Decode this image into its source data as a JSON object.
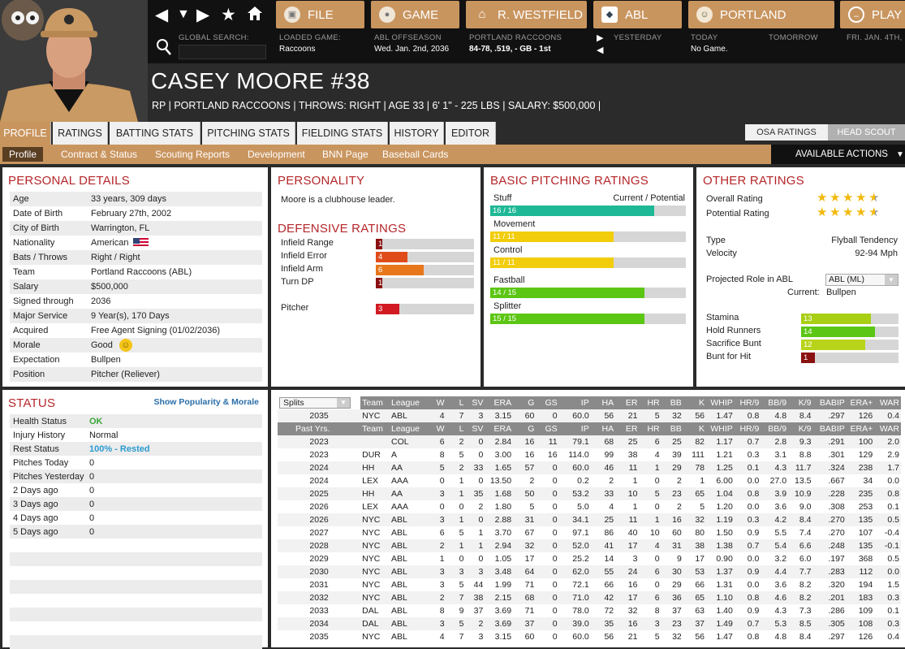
{
  "menu": {
    "file": "FILE",
    "game": "GAME",
    "manager": "R. WESTFIELD",
    "league": "ABL",
    "team": "PORTLAND",
    "play": "PLAY"
  },
  "info_bar": {
    "search_label": "GLOBAL SEARCH:",
    "loaded_label": "LOADED GAME:",
    "loaded_value": "Raccoons",
    "season_label": "ABL OFFSEASON",
    "season_value": "Wed. Jan. 2nd, 2036",
    "team_label": "PORTLAND RACCOONS",
    "team_value": "84-78, .519, - GB - 1st",
    "yesterday": "YESTERDAY",
    "today_label": "TODAY",
    "today_value": "No Game.",
    "tomorrow": "TOMORROW",
    "next_day": "FRI. JAN. 4TH,"
  },
  "player": {
    "name": "CASEY MOORE  #38",
    "subtitle": "RP | PORTLAND RACCOONS  |  THROWS: RIGHT  |  AGE 33  |  6' 1\" - 225 LBS  |  SALARY: $500,000  |"
  },
  "tabs": [
    "PROFILE",
    "RATINGS",
    "BATTING STATS",
    "PITCHING STATS",
    "FIELDING STATS",
    "HISTORY",
    "EDITOR"
  ],
  "scout_toggle": {
    "osa": "OSA RATINGS",
    "head": "HEAD SCOUT"
  },
  "subtabs": [
    "Profile",
    "Contract & Status",
    "Scouting Reports",
    "Development",
    "BNN Page",
    "Baseball Cards"
  ],
  "actions_label": "AVAILABLE ACTIONS",
  "personal": {
    "title": "PERSONAL DETAILS",
    "rows": [
      {
        "k": "Age",
        "v": "33 years, 309 days"
      },
      {
        "k": "Date of Birth",
        "v": "February 27th, 2002"
      },
      {
        "k": "City of Birth",
        "v": "Warrington, FL"
      },
      {
        "k": "Nationality",
        "v": "American"
      },
      {
        "k": "Bats / Throws",
        "v": "Right / Right"
      },
      {
        "k": "Team",
        "v": "Portland Raccoons (ABL)"
      },
      {
        "k": "Salary",
        "v": "$500,000"
      },
      {
        "k": "Signed through",
        "v": "2036"
      },
      {
        "k": "Major Service",
        "v": "9 Year(s), 170 Days"
      },
      {
        "k": "Acquired",
        "v": "Free Agent Signing (01/02/2036)"
      },
      {
        "k": "Morale",
        "v": "Good"
      },
      {
        "k": "Expectation",
        "v": "Bullpen"
      },
      {
        "k": "Position",
        "v": "Pitcher (Reliever)"
      }
    ]
  },
  "personality": {
    "title": "PERSONALITY",
    "text": "Moore is a clubhouse leader."
  },
  "defense": {
    "title": "DEFENSIVE RATINGS",
    "rows": [
      {
        "label": "Infield Range",
        "value": "1",
        "fraction": 0.07,
        "color": "#8b1010"
      },
      {
        "label": "Infield Error",
        "value": "4",
        "fraction": 0.32,
        "color": "#e04b1a"
      },
      {
        "label": "Infield Arm",
        "value": "6",
        "fraction": 0.49,
        "color": "#e8761a"
      },
      {
        "label": "Turn DP",
        "value": "1",
        "fraction": 0.07,
        "color": "#8b1010"
      }
    ],
    "pitcher": {
      "label": "Pitcher",
      "value": "3",
      "fraction": 0.24,
      "color": "#d21a22"
    }
  },
  "pitching": {
    "title": "BASIC PITCHING RATINGS",
    "header": "Current / Potential",
    "rows": [
      {
        "label": "Stuff",
        "value": "16 / 16",
        "fraction": 0.84,
        "color": "#1fb896"
      },
      {
        "label": "Movement",
        "value": "11 / 11",
        "fraction": 0.63,
        "color": "#f2cd0c"
      },
      {
        "label": "Control",
        "value": "11 / 11",
        "fraction": 0.63,
        "color": "#f2cd0c"
      },
      {
        "label": "Fastball",
        "value": "14 / 15",
        "fraction": 0.79,
        "color": "#5cc614"
      },
      {
        "label": "Splitter",
        "value": "15 / 15",
        "fraction": 0.79,
        "color": "#5cc614"
      }
    ]
  },
  "other": {
    "title": "OTHER RATINGS",
    "overall_label": "Overall Rating",
    "overall_stars": 4.5,
    "potential_label": "Potential Rating",
    "potential_stars": 4.5,
    "type_label": "Type",
    "type_value": "Flyball Tendency",
    "velocity_label": "Velocity",
    "velocity_value": "92-94 Mph",
    "role_label": "Projected Role in ABL",
    "role_select": "ABL (ML)",
    "current_label": "Current:",
    "current_value": "Bullpen",
    "bars": [
      {
        "label": "Stamina",
        "value": "13",
        "fraction": 0.72,
        "color": "#a8cf14"
      },
      {
        "label": "Hold Runners",
        "value": "14",
        "fraction": 0.76,
        "color": "#5cc614"
      },
      {
        "label": "Sacrifice Bunt",
        "value": "12",
        "fraction": 0.66,
        "color": "#b8d41a"
      },
      {
        "label": "Bunt for Hit",
        "value": "1",
        "fraction": 0.14,
        "color": "#8b1010"
      }
    ]
  },
  "status": {
    "title": "STATUS",
    "link": "Show Popularity & Morale",
    "rows": [
      {
        "k": "Health Status",
        "v": "OK"
      },
      {
        "k": "Injury History",
        "v": "Normal"
      },
      {
        "k": "Rest Status",
        "v": "100% - Rested"
      },
      {
        "k": "Pitches Today",
        "v": "0"
      },
      {
        "k": "Pitches Yesterday",
        "v": "0"
      },
      {
        "k": "2 Days ago",
        "v": "0"
      },
      {
        "k": "3 Days ago",
        "v": "0"
      },
      {
        "k": "4 Days ago",
        "v": "0"
      },
      {
        "k": "5 Days ago",
        "v": "0"
      }
    ],
    "colors": {
      "ok": "#3aa53a",
      "rested": "#2a9ad0"
    }
  },
  "stats": {
    "splits_label": "Splits",
    "columns": [
      "Team",
      "League",
      "W",
      "L",
      "SV",
      "ERA",
      "G",
      "GS",
      "IP",
      "HA",
      "ER",
      "HR",
      "BB",
      "K",
      "WHIP",
      "HR/9",
      "BB/9",
      "K/9",
      "BABIP",
      "ERA+",
      "WAR"
    ],
    "current": [
      "2035",
      "NYC",
      "ABL",
      "4",
      "7",
      "3",
      "3.15",
      "60",
      "0",
      "60.0",
      "56",
      "21",
      "5",
      "32",
      "56",
      "1.47",
      "0.8",
      "4.8",
      "8.4",
      ".297",
      "126",
      "0.4"
    ],
    "past_label": "Past Yrs.",
    "rows": [
      [
        "2023",
        "",
        "COL",
        "6",
        "2",
        "0",
        "2.84",
        "16",
        "11",
        "79.1",
        "68",
        "25",
        "6",
        "25",
        "82",
        "1.17",
        "0.7",
        "2.8",
        "9.3",
        ".291",
        "100",
        "2.0"
      ],
      [
        "2023",
        "DUR",
        "A",
        "8",
        "5",
        "0",
        "3.00",
        "16",
        "16",
        "114.0",
        "99",
        "38",
        "4",
        "39",
        "111",
        "1.21",
        "0.3",
        "3.1",
        "8.8",
        ".301",
        "129",
        "2.9"
      ],
      [
        "2024",
        "HH",
        "AA",
        "5",
        "2",
        "33",
        "1.65",
        "57",
        "0",
        "60.0",
        "46",
        "11",
        "1",
        "29",
        "78",
        "1.25",
        "0.1",
        "4.3",
        "11.7",
        ".324",
        "238",
        "1.7"
      ],
      [
        "2024",
        "LEX",
        "AAA",
        "0",
        "1",
        "0",
        "13.50",
        "2",
        "0",
        "0.2",
        "2",
        "1",
        "0",
        "2",
        "1",
        "6.00",
        "0.0",
        "27.0",
        "13.5",
        ".667",
        "34",
        "0.0"
      ],
      [
        "2025",
        "HH",
        "AA",
        "3",
        "1",
        "35",
        "1.68",
        "50",
        "0",
        "53.2",
        "33",
        "10",
        "5",
        "23",
        "65",
        "1.04",
        "0.8",
        "3.9",
        "10.9",
        ".228",
        "235",
        "0.8"
      ],
      [
        "2026",
        "LEX",
        "AAA",
        "0",
        "0",
        "2",
        "1.80",
        "5",
        "0",
        "5.0",
        "4",
        "1",
        "0",
        "2",
        "5",
        "1.20",
        "0.0",
        "3.6",
        "9.0",
        ".308",
        "253",
        "0.1"
      ],
      [
        "2026",
        "NYC",
        "ABL",
        "3",
        "1",
        "0",
        "2.88",
        "31",
        "0",
        "34.1",
        "25",
        "11",
        "1",
        "16",
        "32",
        "1.19",
        "0.3",
        "4.2",
        "8.4",
        ".270",
        "135",
        "0.5"
      ],
      [
        "2027",
        "NYC",
        "ABL",
        "6",
        "5",
        "1",
        "3.70",
        "67",
        "0",
        "97.1",
        "86",
        "40",
        "10",
        "60",
        "80",
        "1.50",
        "0.9",
        "5.5",
        "7.4",
        ".270",
        "107",
        "-0.4"
      ],
      [
        "2028",
        "NYC",
        "ABL",
        "2",
        "1",
        "1",
        "2.94",
        "32",
        "0",
        "52.0",
        "41",
        "17",
        "4",
        "31",
        "38",
        "1.38",
        "0.7",
        "5.4",
        "6.6",
        ".248",
        "135",
        "-0.1"
      ],
      [
        "2029",
        "NYC",
        "ABL",
        "1",
        "0",
        "0",
        "1.05",
        "17",
        "0",
        "25.2",
        "14",
        "3",
        "0",
        "9",
        "17",
        "0.90",
        "0.0",
        "3.2",
        "6.0",
        ".197",
        "368",
        "0.5"
      ],
      [
        "2030",
        "NYC",
        "ABL",
        "3",
        "3",
        "3",
        "3.48",
        "64",
        "0",
        "62.0",
        "55",
        "24",
        "6",
        "30",
        "53",
        "1.37",
        "0.9",
        "4.4",
        "7.7",
        ".283",
        "112",
        "0.0"
      ],
      [
        "2031",
        "NYC",
        "ABL",
        "3",
        "5",
        "44",
        "1.99",
        "71",
        "0",
        "72.1",
        "66",
        "16",
        "0",
        "29",
        "66",
        "1.31",
        "0.0",
        "3.6",
        "8.2",
        ".320",
        "194",
        "1.5"
      ],
      [
        "2032",
        "NYC",
        "ABL",
        "2",
        "7",
        "38",
        "2.15",
        "68",
        "0",
        "71.0",
        "42",
        "17",
        "6",
        "36",
        "65",
        "1.10",
        "0.8",
        "4.6",
        "8.2",
        ".201",
        "183",
        "0.3"
      ],
      [
        "2033",
        "DAL",
        "ABL",
        "8",
        "9",
        "37",
        "3.69",
        "71",
        "0",
        "78.0",
        "72",
        "32",
        "8",
        "37",
        "63",
        "1.40",
        "0.9",
        "4.3",
        "7.3",
        ".286",
        "109",
        "0.1"
      ],
      [
        "2034",
        "DAL",
        "ABL",
        "3",
        "5",
        "2",
        "3.69",
        "37",
        "0",
        "39.0",
        "35",
        "16",
        "3",
        "23",
        "37",
        "1.49",
        "0.7",
        "5.3",
        "8.5",
        ".305",
        "108",
        "0.3"
      ],
      [
        "2035",
        "NYC",
        "ABL",
        "4",
        "7",
        "3",
        "3.15",
        "60",
        "0",
        "60.0",
        "56",
        "21",
        "5",
        "32",
        "56",
        "1.47",
        "0.8",
        "4.8",
        "8.4",
        ".297",
        "126",
        "0.4"
      ]
    ]
  },
  "colors": {
    "accent": "#c9955f",
    "title_red": "#b5262a",
    "header_bg": "#2b2b2b"
  }
}
